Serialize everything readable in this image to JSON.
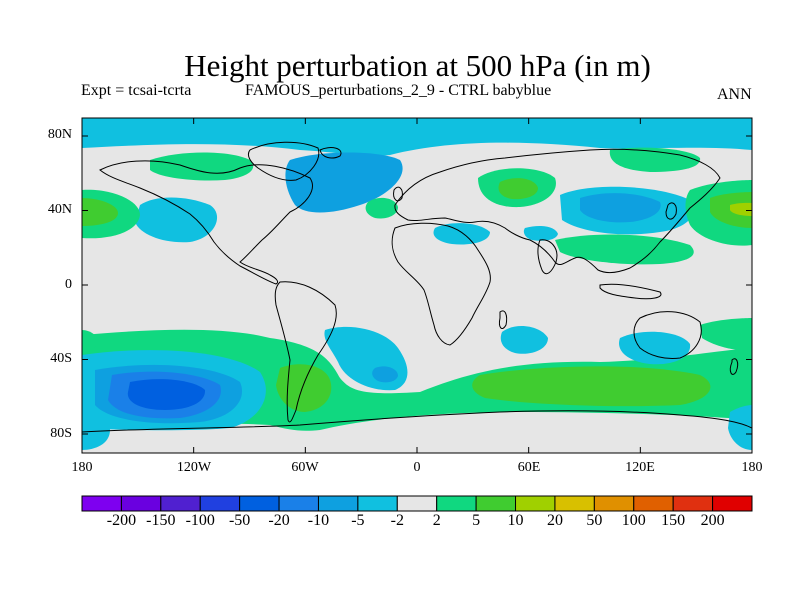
{
  "title": "Height perturbation at 500 hPa (in m)",
  "subtitle_left": "Expt = tcsai-tcrta",
  "subtitle_center": "FAMOUS_perturbations_2_9 - CTRL babyblue",
  "subtitle_right": "ANN",
  "map": {
    "projection": "cylindrical-equidistant",
    "lon_range": [
      -180,
      180
    ],
    "lat_range": [
      -90,
      90
    ],
    "lat_ticks": [
      "80N",
      "40N",
      "0",
      "40S",
      "80S"
    ],
    "lon_ticks": [
      "180",
      "120W",
      "60W",
      "0",
      "60E",
      "120E",
      "180"
    ],
    "background_color": "#e6e6e6",
    "coastline_color": "#000000"
  },
  "colorbar": {
    "levels": [
      "-200",
      "-150",
      "-100",
      "-50",
      "-20",
      "-10",
      "-5",
      "-2",
      "2",
      "5",
      "10",
      "20",
      "50",
      "100",
      "150",
      "200"
    ],
    "colors": [
      "#7e00f0",
      "#6a00e0",
      "#5020d0",
      "#2040e0",
      "#0060e0",
      "#1a80e8",
      "#0ea0e0",
      "#10c0e0",
      "#e6e6e6",
      "#10d880",
      "#40cc30",
      "#a0d000",
      "#d8c000",
      "#e09000",
      "#e06000",
      "#e03010",
      "#e00000"
    ]
  }
}
